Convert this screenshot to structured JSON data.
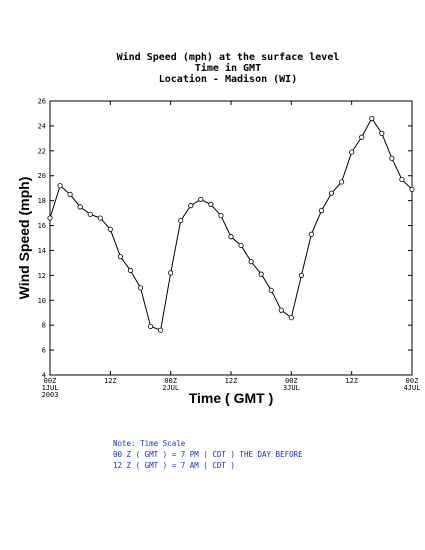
{
  "chart_data": {
    "type": "line",
    "title_lines": [
      "Wind Speed (mph) at the surface level",
      "Time in GMT",
      "Location - Madison (WI)"
    ],
    "xlabel": "Time ( GMT )",
    "ylabel": "Wind Speed (mph)",
    "ylim": [
      4,
      26
    ],
    "yticks": [
      4,
      6,
      8,
      10,
      12,
      14,
      16,
      18,
      20,
      22,
      24,
      26
    ],
    "xlim": [
      0,
      72
    ],
    "xticks": [
      {
        "x": 0,
        "lines": [
          "00Z",
          "1JUL",
          "2003"
        ]
      },
      {
        "x": 12,
        "lines": [
          "12Z"
        ]
      },
      {
        "x": 24,
        "lines": [
          "00Z",
          "2JUL"
        ]
      },
      {
        "x": 36,
        "lines": [
          "12Z"
        ]
      },
      {
        "x": 48,
        "lines": [
          "00Z",
          "3JUL"
        ]
      },
      {
        "x": 60,
        "lines": [
          "12Z"
        ]
      },
      {
        "x": 72,
        "lines": [
          "00Z",
          "4JUL"
        ]
      }
    ],
    "x": [
      0,
      2,
      4,
      6,
      8,
      10,
      12,
      14,
      16,
      18,
      20,
      22,
      24,
      26,
      28,
      30,
      32,
      34,
      36,
      38,
      40,
      42,
      44,
      46,
      48,
      50,
      52,
      54,
      56,
      58,
      60,
      62,
      64,
      66,
      68,
      70,
      72
    ],
    "y": [
      16.6,
      19.2,
      18.5,
      17.5,
      16.9,
      16.6,
      15.7,
      13.5,
      12.4,
      11.0,
      7.9,
      7.6,
      12.2,
      16.4,
      17.6,
      18.1,
      17.7,
      16.8,
      15.1,
      14.4,
      13.1,
      12.1,
      10.8,
      9.2,
      8.6,
      12.0,
      15.3,
      17.2,
      18.6,
      19.5,
      21.9,
      23.1,
      24.6,
      23.4,
      21.4,
      19.7,
      18.9
    ]
  },
  "note": {
    "lines": [
      "Note: Time Scale",
      "00 Z ( GMT ) = 7 PM ( CDT ) THE DAY BEFORE",
      "12 Z ( GMT ) = 7 AM ( CDT )"
    ]
  }
}
